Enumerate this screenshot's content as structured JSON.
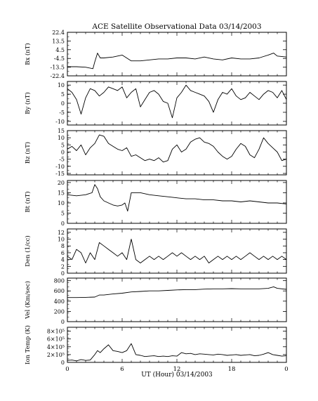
{
  "chart_data": {
    "type": "line",
    "title": "ACE Satellite Observational Data   03/14/2003",
    "xlabel": "UT (Hour)   03/14/2003",
    "x_range": [
      0,
      24
    ],
    "x_ticks": [
      "0",
      "6",
      "12",
      "18",
      "0"
    ],
    "grid": false,
    "panels": [
      {
        "id": "bx",
        "ylabel": "Bx (nT)",
        "ylim": [
          -22.4,
          22.4
        ],
        "y_ticks": [
          "22.4",
          "13.5",
          "4.5",
          "-4.5",
          "-13.5",
          "-22.4"
        ],
        "y_tick_values": [
          22.4,
          13.5,
          4.5,
          -4.5,
          -13.5,
          -22.4
        ],
        "series": [
          {
            "x": [
              0,
              1,
              2,
              2.8,
              3.0,
              3.3,
              3.6,
              4,
              5,
              6,
              7,
              8,
              9,
              10,
              11,
              12,
              13,
              14,
              15,
              16,
              17,
              18,
              19,
              20,
              21,
              22,
              22.6,
              23,
              24
            ],
            "values": [
              -13,
              -13,
              -13.5,
              -15,
              -8,
              1,
              -4,
              -4,
              -3,
              -1,
              -7,
              -7,
              -6,
              -5,
              -5,
              -4,
              -4,
              -5,
              -3,
              -5,
              -6,
              -4,
              -5,
              -5,
              -4,
              -1,
              1,
              -2,
              -3
            ]
          }
        ]
      },
      {
        "id": "by",
        "ylabel": "By (nT)",
        "ylim": [
          -12,
          12
        ],
        "y_ticks": [
          "10",
          "5",
          "0",
          "-5",
          "-10"
        ],
        "y_tick_values": [
          10,
          5,
          0,
          -5,
          -10
        ],
        "series": [
          {
            "x": [
              0,
              0.5,
              1,
              1.5,
              2,
              2.5,
              3,
              3.5,
              4,
              4.5,
              5,
              5.5,
              6,
              6.5,
              7,
              7.5,
              8,
              8.5,
              9,
              9.5,
              10,
              10.5,
              11,
              11.5,
              12,
              12.5,
              13,
              13.5,
              14,
              14.5,
              15,
              15.5,
              16,
              16.5,
              17,
              17.5,
              18,
              18.5,
              19,
              19.5,
              20,
              20.5,
              21,
              21.5,
              22,
              22.5,
              23,
              23.5,
              24
            ],
            "values": [
              8,
              6,
              2,
              -6,
              3,
              8,
              7,
              4,
              6,
              9,
              8,
              7,
              9,
              3,
              6,
              8,
              -2,
              2,
              6,
              7,
              5,
              1,
              0,
              -8,
              3,
              6,
              10,
              7,
              6,
              5,
              4,
              1,
              -5,
              2,
              6,
              5,
              8,
              4,
              2,
              3,
              6,
              4,
              2,
              5,
              7,
              6,
              3,
              7,
              2
            ]
          }
        ]
      },
      {
        "id": "bz",
        "ylabel": "Bz (nT)",
        "ylim": [
          -16,
          15
        ],
        "y_ticks": [
          "15",
          "10",
          "5",
          "0",
          "-5",
          "-10",
          "-15"
        ],
        "y_tick_values": [
          15,
          10,
          5,
          0,
          -5,
          -10,
          -15
        ],
        "series": [
          {
            "x": [
              0,
              0.5,
              1,
              1.5,
              2,
              2.5,
              3,
              3.5,
              4,
              4.5,
              5,
              5.5,
              6,
              6.5,
              7,
              7.5,
              8,
              8.5,
              9,
              9.5,
              10,
              10.5,
              11,
              11.5,
              12,
              12.5,
              13,
              13.5,
              14,
              14.5,
              15,
              15.5,
              16,
              16.5,
              17,
              17.5,
              18,
              18.5,
              19,
              19.5,
              20,
              20.5,
              21,
              21.5,
              22,
              22.5,
              23,
              23.5,
              24
            ],
            "values": [
              2,
              4,
              1,
              5,
              -2,
              3,
              6,
              12,
              11,
              6,
              4,
              2,
              1,
              3,
              -3,
              -2,
              -4,
              -6,
              -5,
              -6,
              -4,
              -7,
              -6,
              2,
              5,
              0,
              2,
              7,
              9,
              10,
              7,
              6,
              4,
              0,
              -3,
              -5,
              -3,
              2,
              6,
              4,
              -2,
              -4,
              2,
              10,
              6,
              3,
              0,
              -6,
              -5
            ]
          }
        ]
      },
      {
        "id": "bt",
        "ylabel": "Bt (nT)",
        "ylim": [
          0,
          21
        ],
        "y_ticks": [
          "20",
          "15",
          "10",
          "5",
          "0"
        ],
        "y_tick_values": [
          20,
          15,
          10,
          5,
          0
        ],
        "series": [
          {
            "x": [
              0,
              1,
              2,
              2.7,
              3.0,
              3.3,
              3.6,
              4,
              4.5,
              5,
              5.5,
              6,
              6.3,
              6.6,
              7,
              8,
              9,
              10,
              11,
              12,
              13,
              14,
              15,
              16,
              17,
              18,
              19,
              20,
              21,
              22,
              23,
              24
            ],
            "values": [
              14,
              13.5,
              14,
              15,
              19,
              17,
              13,
              11,
              10,
              9,
              8.5,
              9,
              10,
              6,
              15,
              15,
              14,
              13.5,
              13,
              12.5,
              12,
              12,
              11.5,
              11.5,
              11,
              11,
              10.5,
              11,
              10.5,
              10,
              10,
              9.5
            ]
          }
        ]
      },
      {
        "id": "den",
        "ylabel": "Den (1/cc)",
        "ylim": [
          0,
          13
        ],
        "y_ticks": [
          "12",
          "10",
          "8",
          "6",
          "4",
          "2",
          "0"
        ],
        "y_tick_values": [
          12,
          10,
          8,
          6,
          4,
          2,
          0
        ],
        "series": [
          {
            "x": [
              0,
              0.5,
              1,
              1.5,
              2,
              2.5,
              3,
              3.5,
              4,
              4.5,
              5,
              5.5,
              6,
              6.5,
              7,
              7.5,
              8,
              8.5,
              9,
              9.5,
              10,
              10.5,
              11,
              11.5,
              12,
              12.5,
              13,
              13.5,
              14,
              14.5,
              15,
              15.5,
              16,
              16.5,
              17,
              17.5,
              18,
              18.5,
              19,
              19.5,
              20,
              20.5,
              21,
              21.5,
              22,
              22.5,
              23,
              23.5,
              24
            ],
            "values": [
              5,
              4,
              7,
              6,
              3,
              6,
              4,
              9,
              8,
              7,
              6,
              5,
              6,
              4,
              10,
              4,
              3,
              4,
              5,
              4,
              5,
              4,
              5,
              6,
              5,
              6,
              5,
              4,
              5,
              4,
              5,
              3,
              4,
              5,
              4,
              5,
              4,
              5,
              4,
              5,
              6,
              5,
              4,
              5,
              4,
              5,
              4,
              5,
              4
            ]
          }
        ]
      },
      {
        "id": "vel",
        "ylabel": "Vel (Km/sec)",
        "ylim": [
          0,
          850
        ],
        "y_ticks": [
          "800",
          "600",
          "400",
          "200",
          "0"
        ],
        "y_tick_values": [
          800,
          600,
          400,
          200,
          0
        ],
        "series": [
          {
            "x": [
              0,
              1,
              2,
              3,
              3.5,
              4,
              5,
              6,
              7,
              8,
              9,
              10,
              11,
              12,
              13,
              14,
              15,
              16,
              17,
              18,
              19,
              20,
              21,
              22,
              22.6,
              23,
              24
            ],
            "values": [
              470,
              470,
              475,
              480,
              520,
              520,
              540,
              555,
              580,
              590,
              600,
              600,
              610,
              620,
              625,
              625,
              635,
              640,
              640,
              645,
              640,
              640,
              640,
              650,
              680,
              650,
              630
            ]
          }
        ]
      },
      {
        "id": "temp",
        "ylabel": "Ion Temp (K)",
        "ylim": [
          0,
          900000
        ],
        "y_ticks": [
          "8×10⁵",
          "6×10⁵",
          "4×10⁵",
          "2×10⁵",
          "0"
        ],
        "y_tick_values": [
          800000,
          600000,
          400000,
          200000,
          0
        ],
        "series": [
          {
            "x": [
              0,
              0.5,
              1,
              1.5,
              2,
              2.5,
              3,
              3.3,
              3.6,
              4,
              4.5,
              5,
              5.5,
              6,
              6.5,
              7,
              7.5,
              8,
              8.5,
              9,
              9.5,
              10,
              10.5,
              11,
              11.5,
              12,
              12.5,
              13,
              13.5,
              14,
              14.5,
              15,
              15.5,
              16,
              16.5,
              17,
              17.5,
              18,
              18.5,
              19,
              19.5,
              20,
              20.5,
              21,
              21.5,
              22,
              22.5,
              23,
              23.5,
              24
            ],
            "values": [
              50000,
              60000,
              40000,
              70000,
              50000,
              60000,
              200000,
              300000,
              250000,
              350000,
              450000,
              300000,
              280000,
              250000,
              300000,
              480000,
              200000,
              180000,
              150000,
              160000,
              170000,
              150000,
              160000,
              150000,
              170000,
              160000,
              250000,
              220000,
              230000,
              200000,
              220000,
              210000,
              200000,
              190000,
              210000,
              200000,
              180000,
              190000,
              200000,
              180000,
              190000,
              200000,
              170000,
              180000,
              210000,
              250000,
              200000,
              180000,
              160000,
              170000
            ]
          }
        ]
      }
    ]
  }
}
